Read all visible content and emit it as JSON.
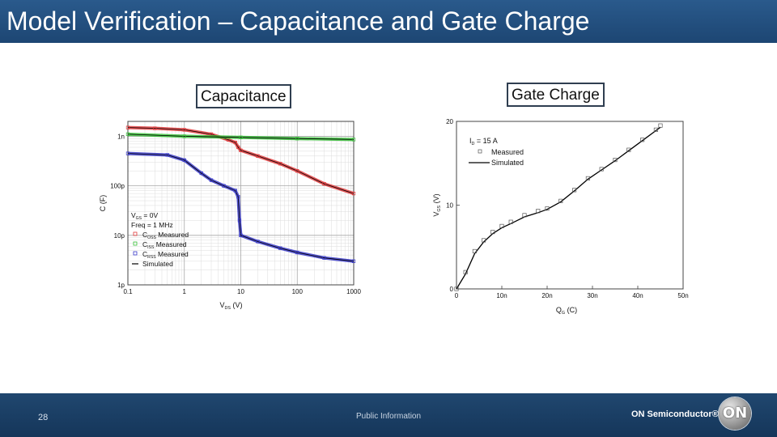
{
  "slide": {
    "title": "Model Verification – Capacitance and Gate Charge",
    "page_number": "28",
    "classification": "Public Information",
    "brand": "ON Semiconductor®",
    "logo_text": "ON"
  },
  "colors": {
    "title_bar": "#1d4673",
    "footer": "#15365a",
    "coss": "#e0393b",
    "ciss": "#38c038",
    "crss": "#3838c8",
    "sim": "#000000"
  },
  "chart_data": [
    {
      "type": "line",
      "panel_label": "Capacitance",
      "xlabel": "V_DS (V)",
      "ylabel": "C (F)",
      "xscale": "log",
      "yscale": "log",
      "xlim": [
        0.1,
        1000
      ],
      "ylim": [
        1e-12,
        2e-09
      ],
      "x_ticks": [
        {
          "v": 0.1,
          "label": "0.1"
        },
        {
          "v": 1,
          "label": "1"
        },
        {
          "v": 10,
          "label": "10"
        },
        {
          "v": 100,
          "label": "100"
        },
        {
          "v": 1000,
          "label": "1000"
        }
      ],
      "y_ticks": [
        {
          "v": 1e-09,
          "label": "1n"
        },
        {
          "v": 1e-10,
          "label": "100p"
        },
        {
          "v": 1e-11,
          "label": "10p"
        },
        {
          "v": 1e-12,
          "label": "1p"
        }
      ],
      "grid": true,
      "annotations": [
        "V_GS = 0V",
        "Freq = 1 MHz"
      ],
      "legend_position": "bottom-left",
      "series": [
        {
          "name": "C_OSS Measured",
          "color_key": "coss",
          "x": [
            0.1,
            0.3,
            1,
            3,
            6,
            8,
            9,
            10,
            20,
            50,
            100,
            300,
            1000
          ],
          "y": [
            1.5e-09,
            1.45e-09,
            1.35e-09,
            1.1e-09,
            8.5e-10,
            7.5e-10,
            6e-10,
            5.2e-10,
            4e-10,
            2.8e-10,
            2e-10,
            1.1e-10,
            7e-11
          ]
        },
        {
          "name": "C_ISS Measured",
          "color_key": "ciss",
          "x": [
            0.1,
            1,
            10,
            100,
            1000
          ],
          "y": [
            1.1e-09,
            1e-09,
            9.5e-10,
            9e-10,
            8.6e-10
          ]
        },
        {
          "name": "C_RSS Measured",
          "color_key": "crss",
          "x": [
            0.1,
            0.5,
            1,
            2,
            3,
            5,
            8,
            9,
            9.5,
            10,
            20,
            50,
            100,
            300,
            1000
          ],
          "y": [
            4.5e-10,
            4.2e-10,
            3.3e-10,
            1.8e-10,
            1.3e-10,
            1e-10,
            8e-11,
            6e-11,
            2e-11,
            1e-11,
            7.5e-12,
            5.5e-12,
            4.5e-12,
            3.5e-12,
            3e-12
          ]
        },
        {
          "name": "Simulated",
          "color_key": "sim",
          "x": [],
          "y": []
        }
      ]
    },
    {
      "type": "line",
      "panel_label": "Gate Charge",
      "xlabel": "Q_G (C)",
      "ylabel": "V_GS (V)",
      "xlim": [
        0,
        5e-08
      ],
      "ylim": [
        0,
        20
      ],
      "x_ticks": [
        {
          "v": 0,
          "label": "0"
        },
        {
          "v": 1e-08,
          "label": "10n"
        },
        {
          "v": 2e-08,
          "label": "20n"
        },
        {
          "v": 3e-08,
          "label": "30n"
        },
        {
          "v": 4e-08,
          "label": "40n"
        },
        {
          "v": 5e-08,
          "label": "50n"
        }
      ],
      "y_ticks": [
        {
          "v": 0,
          "label": "0"
        },
        {
          "v": 10,
          "label": "10"
        },
        {
          "v": 20,
          "label": "20"
        }
      ],
      "grid": false,
      "annotations": [
        "I_D = 15 A"
      ],
      "legend_position": "top-left",
      "series": [
        {
          "name": "Measured",
          "marker": "square",
          "x": [
            0,
            2e-09,
            4e-09,
            6e-09,
            8e-09,
            1e-08,
            1.2e-08,
            1.5e-08,
            1.8e-08,
            2e-08,
            2.3e-08,
            2.6e-08,
            2.9e-08,
            3.2e-08,
            3.5e-08,
            3.8e-08,
            4.1e-08,
            4.4e-08,
            4.5e-08
          ],
          "y": [
            0,
            2,
            4.5,
            5.8,
            6.8,
            7.5,
            8.0,
            8.8,
            9.3,
            9.6,
            10.5,
            11.8,
            13.2,
            14.3,
            15.4,
            16.6,
            17.8,
            19.0,
            19.5
          ]
        },
        {
          "name": "Simulated",
          "marker": "line",
          "x": [
            0,
            2e-09,
            4e-09,
            6e-09,
            8e-09,
            1e-08,
            1.2e-08,
            1.5e-08,
            1.8e-08,
            2e-08,
            2.3e-08,
            2.6e-08,
            2.9e-08,
            3.2e-08,
            3.5e-08,
            3.8e-08,
            4.1e-08,
            4.4e-08,
            4.5e-08
          ],
          "y": [
            0,
            1.8,
            4.2,
            5.6,
            6.6,
            7.3,
            7.8,
            8.6,
            9.1,
            9.5,
            10.4,
            11.7,
            13.1,
            14.2,
            15.3,
            16.5,
            17.7,
            18.9,
            19.3
          ]
        }
      ]
    }
  ]
}
